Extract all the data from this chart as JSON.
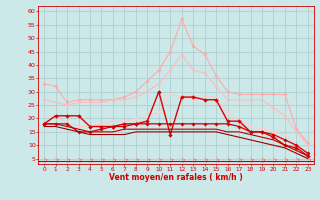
{
  "background_color": "#cce8e8",
  "grid_color": "#aacccc",
  "xlabel": "Vent moyen/en rafales ( km/h )",
  "x_ticks": [
    0,
    1,
    2,
    3,
    4,
    5,
    6,
    7,
    8,
    9,
    10,
    11,
    12,
    13,
    14,
    15,
    16,
    17,
    18,
    19,
    20,
    21,
    22,
    23
  ],
  "y_ticks": [
    5,
    10,
    15,
    20,
    25,
    30,
    35,
    40,
    45,
    50,
    55,
    60
  ],
  "ylim": [
    3,
    62
  ],
  "xlim": [
    -0.5,
    23.5
  ],
  "series": [
    {
      "name": "rafales_light1",
      "color": "#ffaaaa",
      "lw": 0.8,
      "marker": "D",
      "ms": 1.8,
      "y": [
        33,
        32,
        26,
        27,
        27,
        27,
        27,
        28,
        30,
        34,
        38,
        45,
        57,
        47,
        44,
        36,
        30,
        29,
        29,
        29,
        29,
        29,
        16,
        11
      ]
    },
    {
      "name": "rafales_light2",
      "color": "#ffbbbb",
      "lw": 0.8,
      "marker": "D",
      "ms": 1.5,
      "y": [
        27,
        26,
        25,
        26,
        26,
        26,
        27,
        27,
        28,
        30,
        33,
        38,
        44,
        38,
        37,
        32,
        27,
        27,
        27,
        27,
        24,
        21,
        15,
        10
      ]
    },
    {
      "name": "vent_moyen_light",
      "color": "#ffcccc",
      "lw": 0.8,
      "marker": "D",
      "ms": 1.5,
      "y": [
        21,
        21,
        18,
        17,
        17,
        18,
        19,
        19,
        20,
        21,
        22,
        29,
        28,
        27,
        28,
        28,
        22,
        19,
        17,
        16,
        15,
        14,
        10,
        7
      ]
    },
    {
      "name": "vent_dark1",
      "color": "#dd0000",
      "lw": 1.0,
      "marker": "D",
      "ms": 2.0,
      "y": [
        18,
        21,
        21,
        21,
        17,
        17,
        17,
        18,
        18,
        19,
        30,
        14,
        28,
        28,
        27,
        27,
        19,
        19,
        15,
        15,
        13,
        10,
        9,
        6
      ]
    },
    {
      "name": "vent_dark2",
      "color": "#cc0000",
      "lw": 0.9,
      "marker": "D",
      "ms": 1.8,
      "y": [
        18,
        18,
        18,
        15,
        15,
        16,
        17,
        17,
        18,
        18,
        18,
        18,
        18,
        18,
        18,
        18,
        18,
        17,
        15,
        15,
        14,
        12,
        10,
        7
      ]
    },
    {
      "name": "vent_dark3",
      "color": "#bb0000",
      "lw": 0.8,
      "marker": null,
      "ms": 0,
      "y": [
        18,
        18,
        17,
        16,
        15,
        15,
        15,
        16,
        16,
        16,
        16,
        16,
        16,
        16,
        16,
        16,
        15,
        15,
        14,
        13,
        12,
        10,
        8,
        6
      ]
    },
    {
      "name": "vent_dark4",
      "color": "#990000",
      "lw": 0.8,
      "marker": null,
      "ms": 0,
      "y": [
        17,
        17,
        16,
        15,
        14,
        14,
        14,
        14,
        15,
        15,
        15,
        15,
        15,
        15,
        15,
        15,
        14,
        13,
        12,
        11,
        10,
        9,
        7,
        5
      ]
    }
  ],
  "arrow_color": "#ff6666",
  "spine_color": "#cc0000",
  "tick_color": "#cc0000",
  "label_color": "#cc0000"
}
